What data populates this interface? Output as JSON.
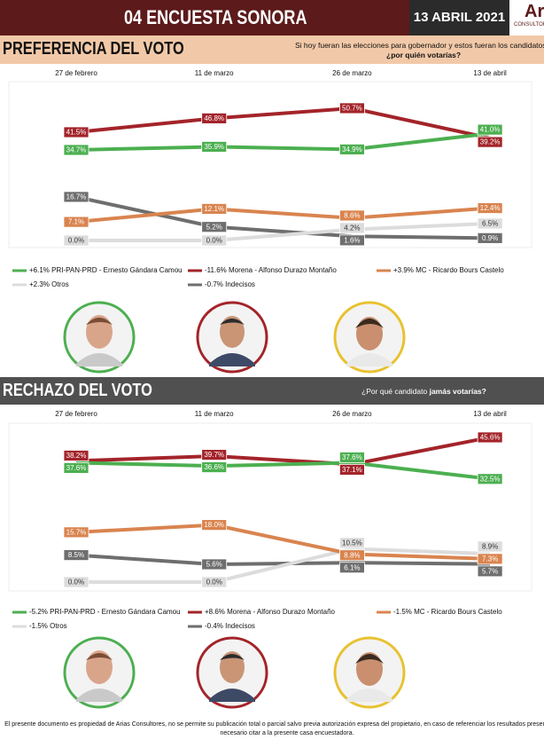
{
  "header": {
    "title": "04 ENCUESTA SONORA",
    "date": "13 ABRIL 2021",
    "logo": "Arias",
    "logo_sub": "CONSULTORES"
  },
  "chart_data": [
    {
      "type": "line",
      "title": "PREFERENCIA DEL VOTO",
      "question": "Si hoy fueran las elecciones para gobernador y estos fueran los candidatos",
      "question_emphasis": "¿por quién votarías?",
      "categories": [
        "27 de febrero",
        "11 de marzo",
        "26 de marzo",
        "13 de abril"
      ],
      "ylim": [
        0,
        55
      ],
      "series": [
        {
          "name": "+6.1% PRI-PAN-PRD - Ernesto Gándara Camou",
          "color": "#4caf50",
          "values": [
            34.7,
            35.9,
            34.9,
            41.0
          ],
          "value_labels": [
            "34.7%",
            "35.9%",
            "34.9%",
            "41.0%"
          ]
        },
        {
          "name": "-11.6% Morena - Alfonso Durazo Montaño",
          "color": "#a3242a",
          "values": [
            41.5,
            46.8,
            50.7,
            39.2
          ],
          "value_labels": [
            "41.5%",
            "46.8%",
            "50.7%",
            "39.2%"
          ]
        },
        {
          "name": "+3.9% MC - Ricardo Bours Castelo",
          "color": "#d9844f",
          "values": [
            7.1,
            12.1,
            8.6,
            12.4
          ],
          "value_labels": [
            "7.1%",
            "12.1%",
            "8.6%",
            "12.4%"
          ]
        },
        {
          "name": "+2.3% Otros",
          "color": "#dcdcdc",
          "values": [
            0.0,
            0.0,
            4.2,
            6.5
          ],
          "value_labels": [
            "0.0%",
            "0.0%",
            "4.2%",
            "6.5%"
          ]
        },
        {
          "name": "-0.7% Indecisos",
          "color": "#6e6e6e",
          "values": [
            16.7,
            5.2,
            1.6,
            0.9
          ],
          "value_labels": [
            "16.7%",
            "5.2%",
            "1.6%",
            "0.9%"
          ]
        }
      ]
    },
    {
      "type": "line",
      "title": "RECHAZO DEL VOTO",
      "question": "¿Por qué candidato",
      "question_emphasis": "jamás votarías?",
      "categories": [
        "27 de febrero",
        "11 de marzo",
        "26 de marzo",
        "13 de abril"
      ],
      "ylim": [
        0,
        50
      ],
      "series": [
        {
          "name": "-5.2% PRI-PAN-PRD - Ernesto Gándara Camou",
          "color": "#4caf50",
          "values": [
            37.6,
            36.6,
            37.6,
            32.5
          ],
          "value_labels": [
            "37.6%",
            "36.6%",
            "37.6%",
            "32.5%"
          ]
        },
        {
          "name": "+8.6% Morena - Alfonso Durazo Montaño",
          "color": "#a3242a",
          "values": [
            38.2,
            39.7,
            37.1,
            45.6
          ],
          "value_labels": [
            "38.2%",
            "39.7%",
            "37.1%",
            "45.6%"
          ]
        },
        {
          "name": "-1.5% MC - Ricardo Bours Castelo",
          "color": "#d9844f",
          "values": [
            15.7,
            18.0,
            8.8,
            7.3
          ],
          "value_labels": [
            "15.7%",
            "18.0%",
            "8.8%",
            "7.3%"
          ]
        },
        {
          "name": "-1.5% Otros",
          "color": "#dcdcdc",
          "values": [
            0.0,
            0.0,
            10.5,
            8.9
          ],
          "value_labels": [
            "0.0%",
            "0.0%",
            "10.5%",
            "8.9%"
          ]
        },
        {
          "name": "-0.4% Indecisos",
          "color": "#6e6e6e",
          "values": [
            8.5,
            5.6,
            6.1,
            5.7
          ],
          "value_labels": [
            "8.5%",
            "5.6%",
            "6.1%",
            "5.7%"
          ]
        }
      ]
    }
  ],
  "footer": "El presente documento es propiedad de Arias Consultores, no se permite su publicación total o parcial salvo previa autorización expresa del propietario, en caso de referenciar los resultados presentados es necesario citar a la presente casa encuestadora."
}
